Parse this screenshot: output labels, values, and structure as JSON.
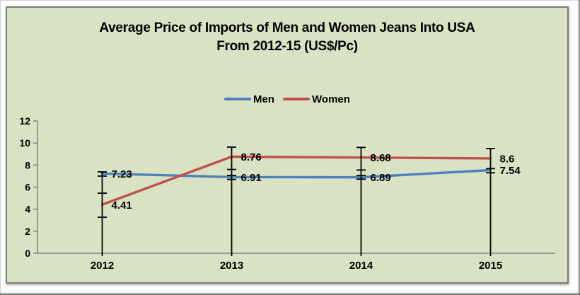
{
  "title": {
    "line1": "Average Price of Imports of Men and Women Jeans Into USA",
    "line2": "From 2012-15 (US$/Pc)"
  },
  "legend": [
    {
      "label": "Men",
      "color": "#4f81bd"
    },
    {
      "label": "Women",
      "color": "#c0504d"
    }
  ],
  "chart_data": {
    "type": "line",
    "title": "Average Price of Imports of Men and Women Jeans Into USA From 2012-15 (US$/Pc)",
    "categories": [
      "2012",
      "2013",
      "2014",
      "2015"
    ],
    "series": [
      {
        "name": "Men",
        "color": "#4f81bd",
        "values": [
          7.23,
          6.91,
          6.89,
          7.54
        ],
        "labels": [
          "7.23",
          "6.91",
          "6.89",
          "7.54"
        ]
      },
      {
        "name": "Women",
        "color": "#c0504d",
        "values": [
          4.41,
          8.76,
          8.68,
          8.6
        ],
        "labels": [
          "4.41",
          "8.76",
          "8.68",
          "8.6"
        ]
      }
    ],
    "xlabel": "",
    "ylabel": "",
    "ylim": [
      0,
      12
    ],
    "yticks": [
      0,
      2,
      4,
      6,
      8,
      10,
      12
    ],
    "grid": false,
    "legend_position": "top-center",
    "error_bars": [
      {
        "category": "2012",
        "line_from": 0,
        "line_to": 7.38,
        "caps": [
          7.38,
          7.0,
          5.45,
          3.27
        ]
      },
      {
        "category": "2013",
        "line_from": 0,
        "line_to": 9.63,
        "caps": [
          9.63,
          7.6,
          7.06,
          6.7
        ]
      },
      {
        "category": "2014",
        "line_from": 0,
        "line_to": 9.6,
        "caps": [
          9.6,
          7.55,
          7.05,
          6.72
        ]
      },
      {
        "category": "2015",
        "line_from": 0,
        "line_to": 9.5,
        "caps": [
          9.5,
          7.68,
          7.3
        ]
      }
    ],
    "colors": {
      "background": "#d9e3c4",
      "axis": "#808080",
      "error_bar": "#000000",
      "text": "#000000",
      "men": "#4f81bd",
      "women": "#c0504d"
    }
  }
}
